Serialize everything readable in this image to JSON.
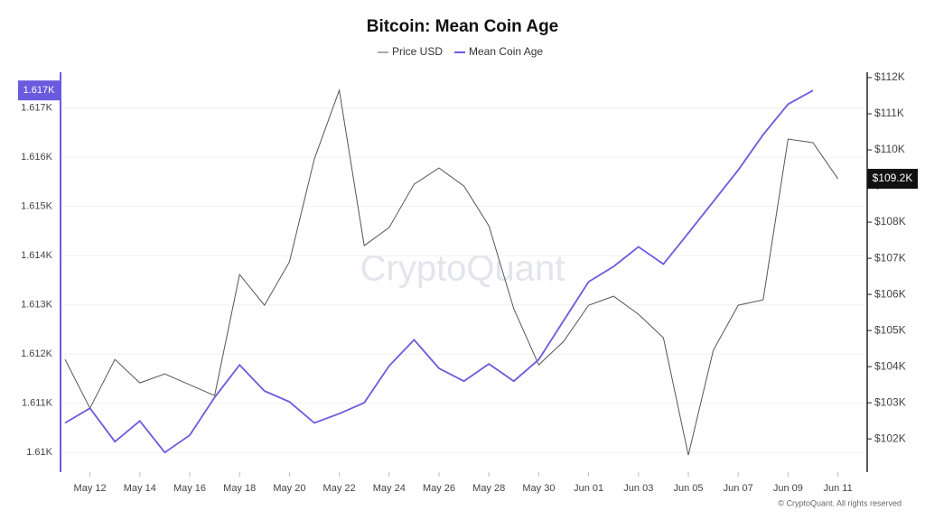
{
  "chart_data": {
    "type": "line",
    "title": "Bitcoin: Mean Coin Age",
    "watermark": "CryptoQuant",
    "credit": "© CryptoQuant. All rights reserved",
    "categories": [
      null,
      "May 12",
      null,
      "May 14",
      null,
      "May 16",
      null,
      "May 18",
      null,
      "May 20",
      null,
      "May 22",
      null,
      "May 24",
      null,
      "May 26",
      null,
      "May 28",
      null,
      "May 30",
      null,
      "Jun 01",
      null,
      "Jun 03",
      null,
      "Jun 05",
      null,
      "Jun 07",
      null,
      "Jun 09",
      null,
      "Jun 11"
    ],
    "series": [
      {
        "name": "Price USD",
        "color": "#555555",
        "axis": "y2",
        "end_label": "$109.2K",
        "values": [
          104200,
          102850,
          104200,
          103550,
          103800,
          103500,
          103200,
          106550,
          105700,
          106900,
          109750,
          111650,
          107350,
          107850,
          109050,
          109500,
          109000,
          107900,
          105600,
          104050,
          104700,
          105700,
          105950,
          105450,
          104800,
          101550,
          104450,
          105700,
          105850,
          110300,
          110200,
          109200
        ]
      },
      {
        "name": "Mean Coin Age",
        "color": "#6a5ae0",
        "end_label": "1.617K",
        "values": [
          1610.6,
          1610.9,
          1610.22,
          1610.64,
          1610.0,
          1610.35,
          1611.12,
          1611.78,
          1611.25,
          1611.03,
          1610.6,
          1610.79,
          1611.01,
          1611.76,
          1612.29,
          1611.71,
          1611.45,
          1611.8,
          1611.45,
          1611.89,
          1612.68,
          1613.47,
          1613.78,
          1614.18,
          1613.83,
          1614.46,
          1615.1,
          1615.74,
          1616.46,
          1617.08,
          1617.36,
          null
        ]
      }
    ],
    "ylim": [
      1609.6,
      1617.73
    ],
    "yticks": [
      {
        "value": 1610,
        "label": "1.61K"
      },
      {
        "value": 1611,
        "label": "1.611K"
      },
      {
        "value": 1612,
        "label": "1.612K"
      },
      {
        "value": 1613,
        "label": "1.613K"
      },
      {
        "value": 1614,
        "label": "1.614K"
      },
      {
        "value": 1615,
        "label": "1.615K"
      },
      {
        "value": 1616,
        "label": "1.616K"
      },
      {
        "value": 1617,
        "label": "1.617K"
      }
    ],
    "y2lim": [
      101080,
      112150
    ],
    "y2ticks": [
      {
        "value": 102000,
        "label": "$102K"
      },
      {
        "value": 103000,
        "label": "$103K"
      },
      {
        "value": 104000,
        "label": "$104K"
      },
      {
        "value": 105000,
        "label": "$105K"
      },
      {
        "value": 106000,
        "label": "$106K"
      },
      {
        "value": 107000,
        "label": "$107K"
      },
      {
        "value": 108000,
        "label": "$108K"
      },
      {
        "value": 109000,
        "label": "$109K"
      },
      {
        "value": 110000,
        "label": "$110K"
      },
      {
        "value": 111000,
        "label": "$111K"
      },
      {
        "value": 112000,
        "label": "$112K"
      }
    ],
    "grid": true
  }
}
